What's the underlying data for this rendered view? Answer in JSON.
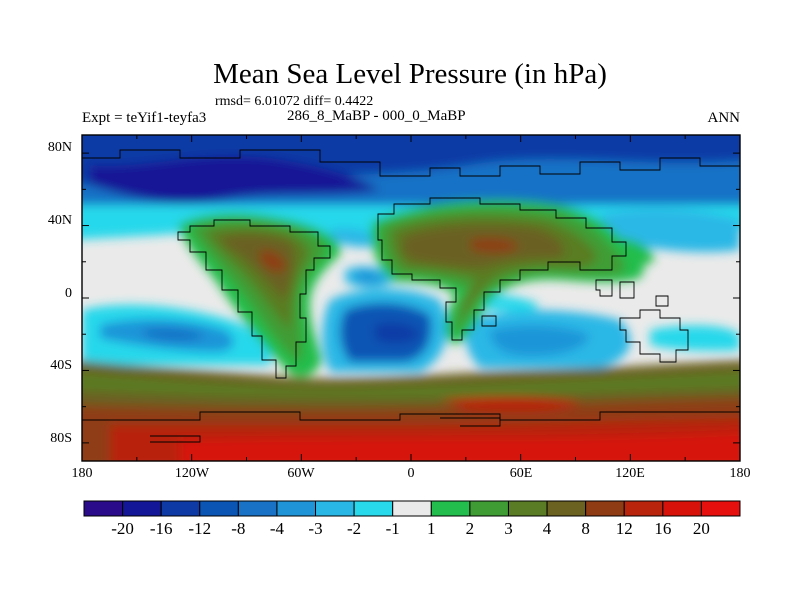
{
  "title": "Mean Sea Level Pressure (in hPa)",
  "stats": "rmsd= 6.01072 diff= 0.4422",
  "experiment": "Expt = teYif1-teyfa3",
  "subtitle": "286_8_MaBP - 000_0_MaBP",
  "season": "ANN",
  "map": {
    "projection": "cylindrical equidistant",
    "lon_range": [
      -180,
      180
    ],
    "lat_range": [
      -90,
      90
    ],
    "x_ticks": [
      "180",
      "120W",
      "60W",
      "0",
      "60E",
      "120E",
      "180"
    ],
    "y_ticks": [
      "80N",
      "40N",
      "0",
      "40S",
      "80S"
    ],
    "coastlines": "paleogeography (Pangaea)"
  },
  "colorbar": {
    "labels": [
      "-20",
      "-16",
      "-12",
      "-8",
      "-4",
      "-3",
      "-2",
      "-1",
      "1",
      "2",
      "3",
      "4",
      "8",
      "12",
      "16",
      "20"
    ],
    "colors": [
      "#2a0c8a",
      "#131696",
      "#0e3aa6",
      "#0b55b4",
      "#1972c6",
      "#1f95d8",
      "#29b8e6",
      "#28d8eb",
      "#eaeaea",
      "#22bd4c",
      "#3f9c34",
      "#5a7c24",
      "#6b6120",
      "#8f3c14",
      "#b8240c",
      "#d6120a",
      "#e6110f"
    ]
  }
}
